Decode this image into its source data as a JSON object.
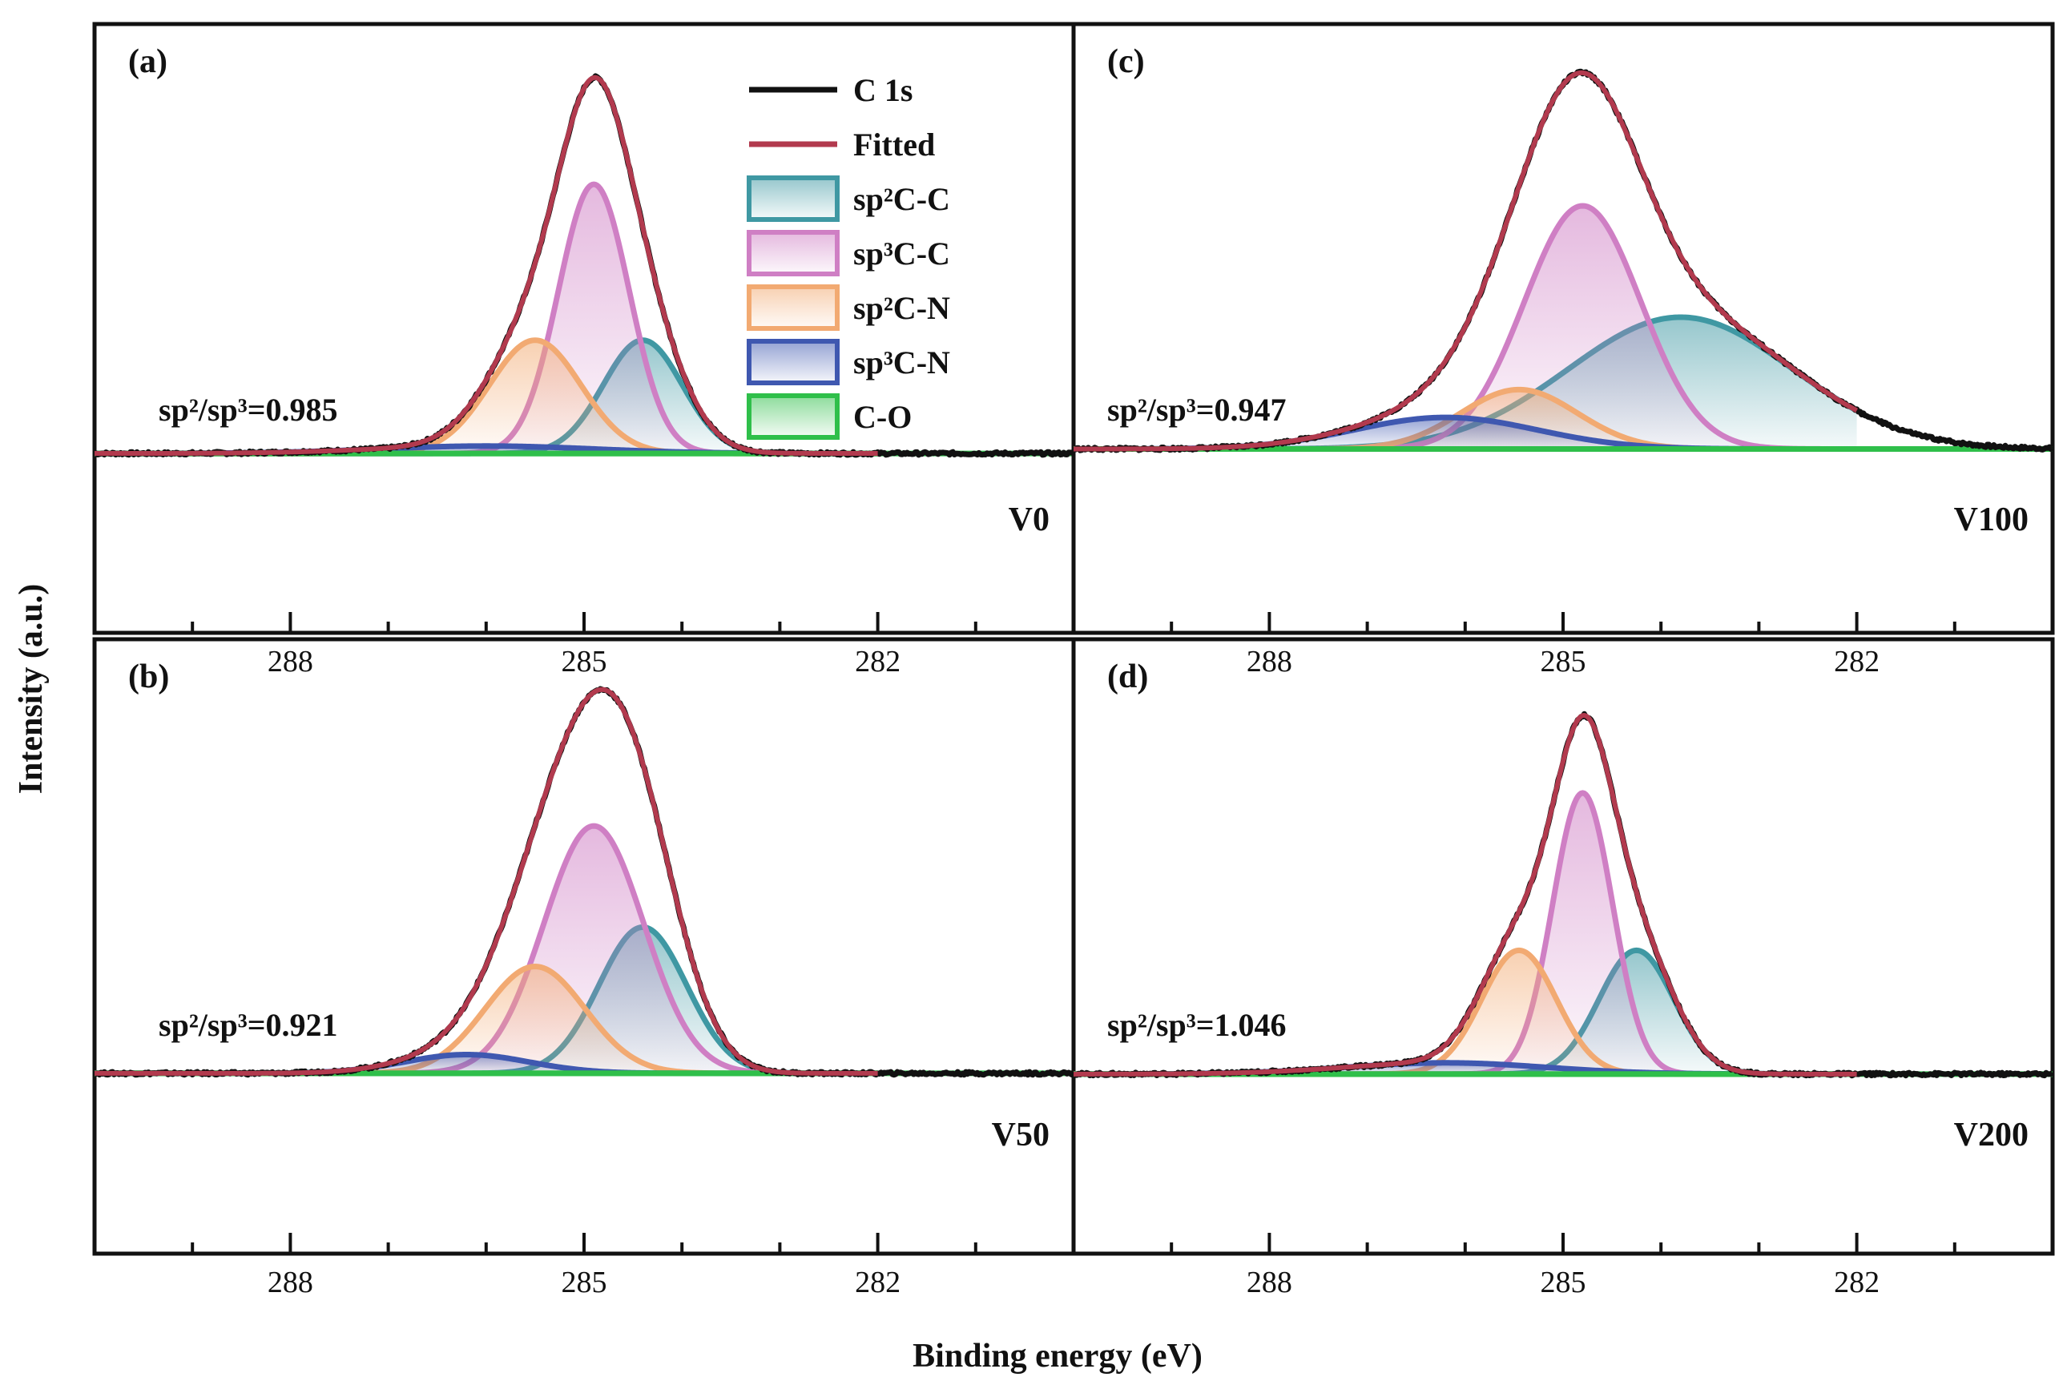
{
  "figure": {
    "ylabel": "Intensity (a.u.)",
    "xlabel": "Binding energy (eV)"
  },
  "legend": [
    {
      "label": "C 1s",
      "type": "line",
      "color": "#111111"
    },
    {
      "label": "Fitted",
      "type": "line",
      "color": "#b23a4e"
    },
    {
      "label": "sp²C-C",
      "type": "patch",
      "color": "#3f98a3"
    },
    {
      "label": "sp³C-C",
      "type": "patch",
      "color": "#cf7fc4"
    },
    {
      "label": "sp²C-N",
      "type": "patch",
      "color": "#f2aa72"
    },
    {
      "label": "sp³C-N",
      "type": "patch",
      "color": "#3f58b0"
    },
    {
      "label": "C-O",
      "type": "patch",
      "color": "#2fbf4a"
    }
  ],
  "chart_data": [
    {
      "type": "line",
      "panel": "(a)",
      "sample": "V0",
      "ratio": "sp²/sp³=0.985",
      "xlim": [
        290,
        280
      ],
      "ylim": [
        -0.18,
        1.1
      ],
      "xticks": [
        288,
        285,
        282
      ],
      "baseline": 0.008,
      "noise": 0.004,
      "peaks": [
        {
          "name": "sp²C-C",
          "center": 284.4,
          "fwhm": 0.95,
          "height": 0.305
        },
        {
          "name": "sp³C-C",
          "center": 284.9,
          "fwhm": 0.85,
          "height": 0.725
        },
        {
          "name": "sp²C-N",
          "center": 285.5,
          "fwhm": 1.1,
          "height": 0.305
        },
        {
          "name": "sp³C-N",
          "center": 286.0,
          "fwhm": 2.6,
          "height": 0.02
        },
        {
          "name": "C-O",
          "center": 287.0,
          "fwhm": 3.0,
          "height": 0.0
        }
      ]
    },
    {
      "type": "line",
      "panel": "(b)",
      "sample": "V50",
      "ratio": "sp²/sp³=0.921",
      "xlim": [
        290,
        280
      ],
      "ylim": [
        -0.18,
        1.1
      ],
      "xticks": [
        288,
        285,
        282
      ],
      "baseline": 0.006,
      "noise": 0.004,
      "peaks": [
        {
          "name": "sp²C-C",
          "center": 284.4,
          "fwhm": 1.05,
          "height": 0.39
        },
        {
          "name": "sp³C-C",
          "center": 284.9,
          "fwhm": 1.2,
          "height": 0.66
        },
        {
          "name": "sp²C-N",
          "center": 285.5,
          "fwhm": 1.2,
          "height": 0.285
        },
        {
          "name": "sp³C-N",
          "center": 286.2,
          "fwhm": 1.5,
          "height": 0.05
        },
        {
          "name": "C-O",
          "center": 287.0,
          "fwhm": 3.0,
          "height": 0.0
        }
      ]
    },
    {
      "type": "line",
      "panel": "(c)",
      "sample": "V100",
      "ratio": "sp²/sp³=0.947",
      "xlim": [
        290,
        280
      ],
      "ylim": [
        -0.18,
        1.1
      ],
      "xticks": [
        288,
        285,
        282
      ],
      "baseline": 0.02,
      "noise": 0.004,
      "peaks": [
        {
          "name": "sp²C-C",
          "center": 283.8,
          "fwhm": 2.7,
          "height": 0.355
        },
        {
          "name": "sp³C-C",
          "center": 284.8,
          "fwhm": 1.4,
          "height": 0.655
        },
        {
          "name": "sp²C-N",
          "center": 285.45,
          "fwhm": 1.4,
          "height": 0.16
        },
        {
          "name": "sp³C-N",
          "center": 286.2,
          "fwhm": 2.2,
          "height": 0.085
        },
        {
          "name": "C-O",
          "center": 287.0,
          "fwhm": 3.0,
          "height": 0.0
        }
      ]
    },
    {
      "type": "line",
      "panel": "(d)",
      "sample": "V200",
      "ratio": "sp²/sp³=1.046",
      "xlim": [
        290,
        280
      ],
      "ylim": [
        -0.18,
        1.1
      ],
      "xticks": [
        288,
        285,
        282
      ],
      "baseline": 0.004,
      "noise": 0.004,
      "peaks": [
        {
          "name": "sp²C-C",
          "center": 284.25,
          "fwhm": 0.9,
          "height": 0.33
        },
        {
          "name": "sp³C-C",
          "center": 284.8,
          "fwhm": 0.72,
          "height": 0.75
        },
        {
          "name": "sp²C-N",
          "center": 285.45,
          "fwhm": 0.9,
          "height": 0.33
        },
        {
          "name": "sp³C-N",
          "center": 286.2,
          "fwhm": 2.4,
          "height": 0.03
        },
        {
          "name": "C-O",
          "center": 287.0,
          "fwhm": 3.0,
          "height": 0.0
        }
      ]
    }
  ]
}
